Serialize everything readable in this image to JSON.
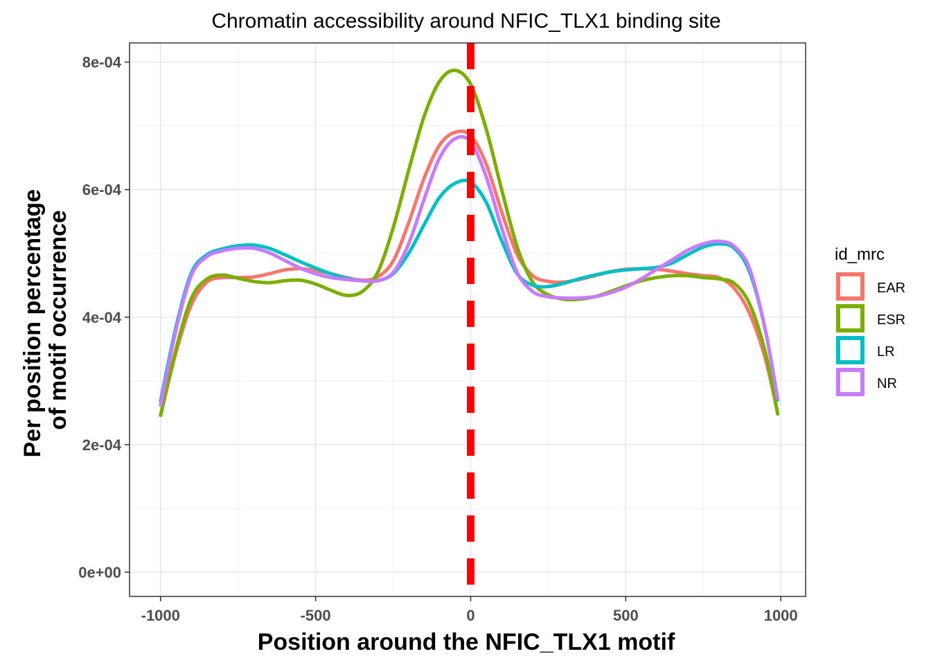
{
  "chart_data": {
    "type": "line",
    "title": "Chromatin accessibility around NFIC_TLX1 binding site",
    "xlabel": "Position around the NFIC_TLX1  motif",
    "ylabel_lines": [
      "Per position percentage",
      "of motif occurrence"
    ],
    "xlim": [
      -1100,
      1080
    ],
    "ylim": [
      -3.8e-05,
      0.00083
    ],
    "x_ticks": [
      -1000,
      -500,
      0,
      500,
      1000
    ],
    "x_tick_labels": [
      "-1000",
      "-500",
      "0",
      "500",
      "1000"
    ],
    "y_ticks": [
      0,
      0.0002,
      0.0004,
      0.0006,
      0.0008
    ],
    "y_tick_labels": [
      "0e+00",
      "2e-04",
      "4e-04",
      "6e-04",
      "8e-04"
    ],
    "grid": true,
    "legend_title": "id_mrc",
    "legend_position": "right",
    "reference_line": {
      "x": 0,
      "color": "#ff0000",
      "style": "dashed"
    },
    "series": [
      {
        "name": "EAR",
        "color": "#F8766D",
        "x": [
          -1000,
          -950,
          -900,
          -850,
          -800,
          -750,
          -700,
          -650,
          -600,
          -550,
          -500,
          -450,
          -400,
          -350,
          -300,
          -250,
          -200,
          -150,
          -100,
          -50,
          0,
          50,
          100,
          150,
          200,
          250,
          300,
          350,
          400,
          450,
          500,
          550,
          600,
          650,
          700,
          750,
          800,
          850,
          900,
          950,
          990
        ],
        "y": [
          0.000246,
          0.000345,
          0.00042,
          0.000455,
          0.000462,
          0.000462,
          0.000463,
          0.000468,
          0.000474,
          0.000476,
          0.000473,
          0.000468,
          0.000462,
          0.000458,
          0.000463,
          0.000488,
          0.000548,
          0.000618,
          0.00067,
          0.00069,
          0.000685,
          0.00064,
          0.000565,
          0.000498,
          0.000465,
          0.000456,
          0.000455,
          0.000459,
          0.000465,
          0.000471,
          0.000475,
          0.000476,
          0.000475,
          0.000472,
          0.000468,
          0.000465,
          0.000462,
          0.000445,
          0.000405,
          0.000335,
          0.00025
        ]
      },
      {
        "name": "ESR",
        "color": "#7CAE00",
        "x": [
          -1000,
          -950,
          -900,
          -850,
          -800,
          -750,
          -700,
          -650,
          -600,
          -550,
          -500,
          -450,
          -400,
          -350,
          -300,
          -250,
          -200,
          -150,
          -100,
          -50,
          0,
          50,
          100,
          150,
          200,
          250,
          300,
          350,
          400,
          450,
          500,
          550,
          600,
          650,
          700,
          750,
          800,
          850,
          900,
          950,
          990
        ],
        "y": [
          0.000246,
          0.00035,
          0.00043,
          0.00046,
          0.000466,
          0.000461,
          0.000456,
          0.000454,
          0.000457,
          0.000458,
          0.000452,
          0.000442,
          0.000434,
          0.00044,
          0.00047,
          0.00054,
          0.00063,
          0.000715,
          0.00077,
          0.000787,
          0.000765,
          0.000695,
          0.0006,
          0.00051,
          0.000455,
          0.000435,
          0.000428,
          0.000428,
          0.000432,
          0.00044,
          0.000449,
          0.000457,
          0.000462,
          0.000465,
          0.000465,
          0.000462,
          0.00046,
          0.000453,
          0.00042,
          0.000345,
          0.000248
        ]
      },
      {
        "name": "LR",
        "color": "#00BFC4",
        "x": [
          -1000,
          -950,
          -900,
          -850,
          -800,
          -750,
          -700,
          -650,
          -600,
          -550,
          -500,
          -450,
          -400,
          -350,
          -300,
          -250,
          -200,
          -150,
          -100,
          -50,
          0,
          50,
          100,
          150,
          200,
          250,
          300,
          350,
          400,
          450,
          500,
          550,
          600,
          650,
          700,
          750,
          800,
          850,
          900,
          950,
          990
        ],
        "y": [
          0.000268,
          0.000385,
          0.00047,
          0.000498,
          0.000507,
          0.000512,
          0.000513,
          0.000508,
          0.000498,
          0.000487,
          0.000477,
          0.000468,
          0.000461,
          0.000457,
          0.000457,
          0.000468,
          0.0005,
          0.000545,
          0.000588,
          0.00061,
          0.000612,
          0.00058,
          0.00052,
          0.000468,
          0.00045,
          0.000448,
          0.000453,
          0.00046,
          0.000466,
          0.000471,
          0.000474,
          0.000476,
          0.000478,
          0.000485,
          0.000498,
          0.00051,
          0.000515,
          0.000508,
          0.00047,
          0.00038,
          0.00027
        ]
      },
      {
        "name": "NR",
        "color": "#C77CFF",
        "x": [
          -1000,
          -950,
          -900,
          -850,
          -800,
          -750,
          -700,
          -650,
          -600,
          -550,
          -500,
          -450,
          -400,
          -350,
          -300,
          -250,
          -200,
          -150,
          -100,
          -50,
          0,
          50,
          100,
          150,
          200,
          250,
          300,
          350,
          400,
          450,
          500,
          550,
          600,
          650,
          700,
          750,
          800,
          850,
          900,
          950,
          990
        ],
        "y": [
          0.000262,
          0.00038,
          0.000466,
          0.000495,
          0.000504,
          0.000508,
          0.000508,
          0.000501,
          0.000489,
          0.000477,
          0.000468,
          0.000462,
          0.000459,
          0.000457,
          0.000457,
          0.00047,
          0.000515,
          0.000585,
          0.00065,
          0.00068,
          0.000675,
          0.00062,
          0.00054,
          0.00047,
          0.00044,
          0.000432,
          0.00043,
          0.00043,
          0.000432,
          0.000438,
          0.000447,
          0.00046,
          0.000475,
          0.00049,
          0.000505,
          0.000515,
          0.000519,
          0.000511,
          0.000475,
          0.00038,
          0.000272
        ]
      }
    ]
  }
}
